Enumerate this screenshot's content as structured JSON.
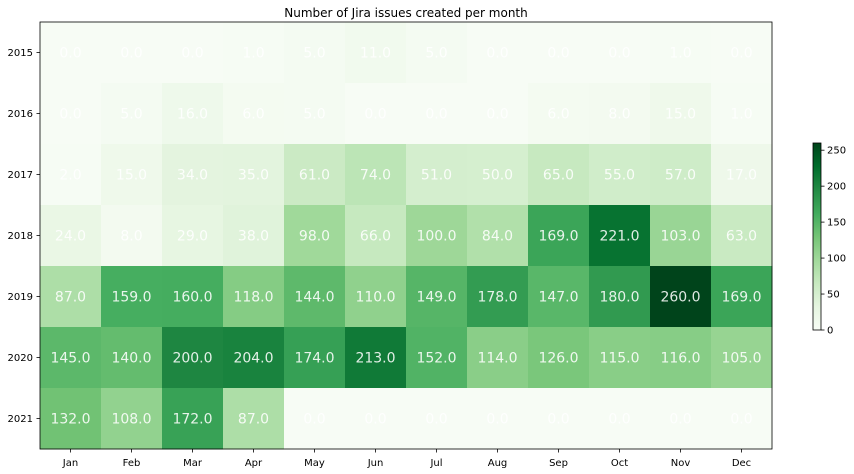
{
  "chart_data": {
    "type": "heatmap",
    "title": "Number of Jira issues created per month",
    "xlabel": "",
    "ylabel": "",
    "x_categories": [
      "Jan",
      "Feb",
      "Mar",
      "Apr",
      "May",
      "Jun",
      "Jul",
      "Aug",
      "Sep",
      "Oct",
      "Nov",
      "Dec"
    ],
    "y_categories": [
      "2015",
      "2016",
      "2017",
      "2018",
      "2019",
      "2020",
      "2021"
    ],
    "values": [
      [
        0.0,
        0.0,
        0.0,
        1.0,
        5.0,
        11.0,
        5.0,
        0.0,
        0.0,
        0.0,
        1.0,
        0.0
      ],
      [
        0.0,
        5.0,
        16.0,
        6.0,
        5.0,
        0.0,
        0.0,
        0.0,
        6.0,
        8.0,
        15.0,
        1.0
      ],
      [
        2.0,
        15.0,
        34.0,
        35.0,
        61.0,
        74.0,
        51.0,
        50.0,
        65.0,
        55.0,
        57.0,
        17.0
      ],
      [
        24.0,
        8.0,
        29.0,
        38.0,
        98.0,
        66.0,
        100.0,
        84.0,
        169.0,
        221.0,
        103.0,
        63.0
      ],
      [
        87.0,
        159.0,
        160.0,
        118.0,
        144.0,
        110.0,
        149.0,
        178.0,
        147.0,
        180.0,
        260.0,
        169.0
      ],
      [
        145.0,
        140.0,
        200.0,
        204.0,
        174.0,
        213.0,
        152.0,
        114.0,
        126.0,
        115.0,
        116.0,
        105.0
      ],
      [
        132.0,
        108.0,
        172.0,
        87.0,
        0.0,
        0.0,
        0.0,
        0.0,
        0.0,
        0.0,
        0.0,
        0.0
      ]
    ],
    "value_format": "one-decimal",
    "colormap": "Greens",
    "colormap_stops": [
      "#f7fcf5",
      "#e5f5e0",
      "#c7e9c0",
      "#a1d99b",
      "#74c476",
      "#41ab5d",
      "#238b45",
      "#006d2c",
      "#00441b"
    ],
    "color_range": [
      0,
      260
    ],
    "colorbar_ticks": [
      "0",
      "50",
      "100",
      "150",
      "200",
      "250"
    ],
    "colorbar_tick_values": [
      0,
      50,
      100,
      150,
      200,
      250
    ],
    "cell_text_color": "#ffffff",
    "grid": false
  }
}
